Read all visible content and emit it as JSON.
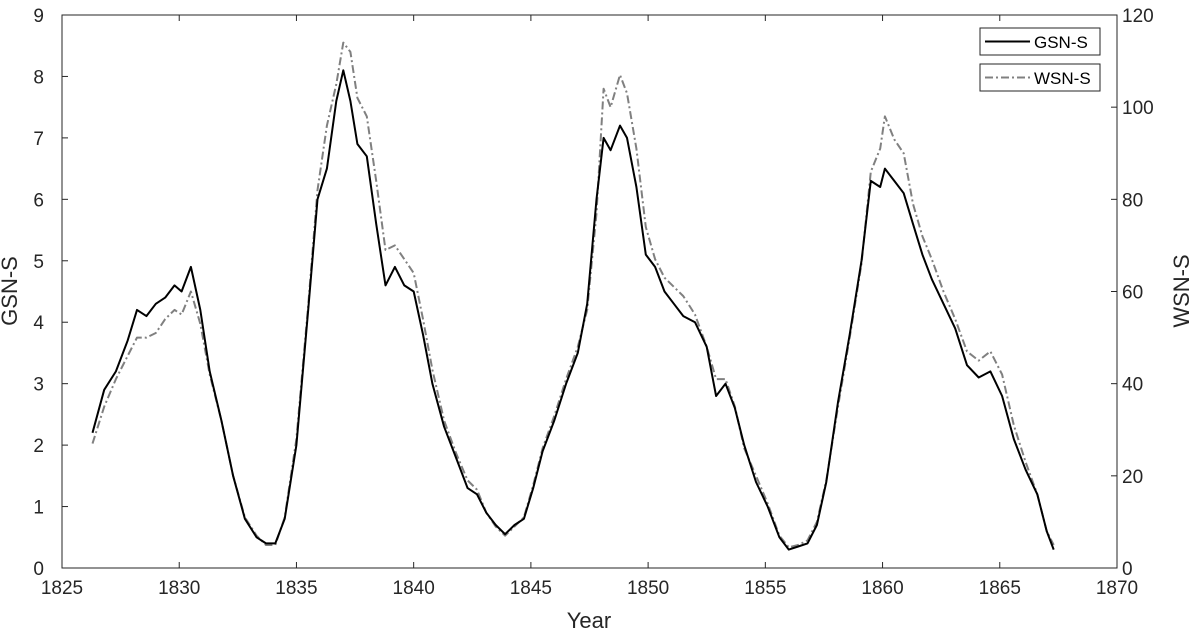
{
  "chart_data": {
    "type": "line",
    "title": "",
    "xlabel": "Year",
    "ylabel_left": "GSN-S",
    "ylabel_right": "WSN-S",
    "xlim": [
      1825,
      1870
    ],
    "ylim_left": [
      0,
      9
    ],
    "ylim_right": [
      0,
      120
    ],
    "x_ticks": [
      1825,
      1830,
      1835,
      1840,
      1845,
      1850,
      1855,
      1860,
      1865,
      1870
    ],
    "y_ticks_left": [
      0,
      1,
      2,
      3,
      4,
      5,
      6,
      7,
      8,
      9
    ],
    "y_ticks_right": [
      0,
      20,
      40,
      60,
      80,
      100,
      120
    ],
    "grid": false,
    "legend_position": "top-right",
    "series": [
      {
        "name": "GSN-S",
        "axis": "left",
        "color": "#000000",
        "style": "solid",
        "x": [
          1826.3,
          1826.8,
          1827.3,
          1827.8,
          1828.2,
          1828.6,
          1829.0,
          1829.4,
          1829.8,
          1830.1,
          1830.5,
          1830.9,
          1831.3,
          1831.8,
          1832.3,
          1832.8,
          1833.3,
          1833.7,
          1834.1,
          1834.5,
          1835.0,
          1835.5,
          1835.9,
          1836.3,
          1836.7,
          1837.0,
          1837.3,
          1837.6,
          1838.0,
          1838.4,
          1838.8,
          1839.2,
          1839.6,
          1840.0,
          1840.4,
          1840.8,
          1841.3,
          1841.8,
          1842.3,
          1842.7,
          1843.1,
          1843.5,
          1843.9,
          1844.3,
          1844.7,
          1845.1,
          1845.5,
          1846.0,
          1846.5,
          1847.0,
          1847.4,
          1847.8,
          1848.1,
          1848.4,
          1848.8,
          1849.1,
          1849.5,
          1849.9,
          1850.3,
          1850.7,
          1851.1,
          1851.5,
          1852.0,
          1852.5,
          1852.9,
          1853.3,
          1853.7,
          1854.1,
          1854.6,
          1855.1,
          1855.6,
          1856.0,
          1856.4,
          1856.8,
          1857.2,
          1857.6,
          1858.1,
          1858.6,
          1859.1,
          1859.5,
          1859.9,
          1860.1,
          1860.5,
          1860.9,
          1861.3,
          1861.7,
          1862.1,
          1862.6,
          1863.1,
          1863.6,
          1864.1,
          1864.6,
          1865.1,
          1865.6,
          1866.1,
          1866.6,
          1867.0,
          1867.3
        ],
        "y": [
          2.2,
          2.9,
          3.2,
          3.7,
          4.2,
          4.1,
          4.3,
          4.4,
          4.6,
          4.5,
          4.9,
          4.2,
          3.2,
          2.4,
          1.5,
          0.8,
          0.5,
          0.4,
          0.4,
          0.8,
          2.0,
          4.2,
          6.0,
          6.5,
          7.6,
          8.1,
          7.6,
          6.9,
          6.7,
          5.6,
          4.6,
          4.9,
          4.6,
          4.5,
          3.8,
          3.0,
          2.3,
          1.8,
          1.3,
          1.2,
          0.9,
          0.7,
          0.55,
          0.7,
          0.8,
          1.3,
          1.9,
          2.4,
          3.0,
          3.5,
          4.3,
          6.0,
          7.0,
          6.8,
          7.2,
          7.0,
          6.2,
          5.1,
          4.9,
          4.5,
          4.3,
          4.1,
          4.0,
          3.6,
          2.8,
          3.0,
          2.6,
          2.0,
          1.4,
          1.0,
          0.5,
          0.3,
          0.35,
          0.4,
          0.7,
          1.4,
          2.7,
          3.8,
          5.0,
          6.3,
          6.2,
          6.5,
          6.3,
          6.1,
          5.6,
          5.1,
          4.7,
          4.3,
          3.9,
          3.3,
          3.1,
          3.2,
          2.8,
          2.1,
          1.6,
          1.2,
          0.6,
          0.3
        ]
      },
      {
        "name": "WSN-S",
        "axis": "right",
        "color": "#808080",
        "style": "dash-dot",
        "x": [
          1826.3,
          1826.8,
          1827.3,
          1827.8,
          1828.2,
          1828.6,
          1829.0,
          1829.4,
          1829.8,
          1830.1,
          1830.5,
          1830.9,
          1831.3,
          1831.8,
          1832.3,
          1832.8,
          1833.3,
          1833.7,
          1834.1,
          1834.5,
          1835.0,
          1835.5,
          1835.9,
          1836.3,
          1836.7,
          1837.0,
          1837.3,
          1837.6,
          1838.0,
          1838.4,
          1838.8,
          1839.2,
          1839.6,
          1840.0,
          1840.4,
          1840.8,
          1841.3,
          1841.8,
          1842.3,
          1842.7,
          1843.1,
          1843.5,
          1843.9,
          1844.3,
          1844.7,
          1845.1,
          1845.5,
          1846.0,
          1846.5,
          1847.0,
          1847.4,
          1847.8,
          1848.1,
          1848.4,
          1848.8,
          1849.1,
          1849.5,
          1849.9,
          1850.3,
          1850.7,
          1851.1,
          1851.5,
          1852.0,
          1852.5,
          1852.9,
          1853.3,
          1853.7,
          1854.1,
          1854.6,
          1855.1,
          1855.6,
          1856.0,
          1856.4,
          1856.8,
          1857.2,
          1857.6,
          1858.1,
          1858.6,
          1859.1,
          1859.5,
          1859.9,
          1860.1,
          1860.5,
          1860.9,
          1861.3,
          1861.7,
          1862.1,
          1862.6,
          1863.1,
          1863.6,
          1864.1,
          1864.6,
          1865.1,
          1865.6,
          1866.1,
          1866.6,
          1867.0,
          1867.3
        ],
        "y": [
          27,
          35,
          41,
          46,
          50,
          50,
          51,
          54,
          56,
          55,
          60,
          53,
          42,
          32,
          20,
          11,
          7,
          5,
          5,
          11,
          28,
          57,
          82,
          96,
          105,
          114,
          112,
          102,
          98,
          84,
          69,
          70,
          67,
          64,
          54,
          43,
          32,
          25,
          19,
          17,
          12,
          9,
          7,
          9,
          11,
          18,
          26,
          33,
          41,
          48,
          56,
          77,
          104,
          100,
          107,
          103,
          91,
          74,
          67,
          63,
          61,
          59,
          55,
          48,
          41,
          41,
          35,
          26,
          20,
          14,
          7,
          4.5,
          5,
          6,
          10,
          19,
          35,
          50,
          66,
          86,
          91,
          98,
          93,
          90,
          79,
          72,
          67,
          60,
          54,
          47,
          45,
          47,
          42,
          31,
          23,
          16,
          8,
          5
        ]
      }
    ]
  }
}
